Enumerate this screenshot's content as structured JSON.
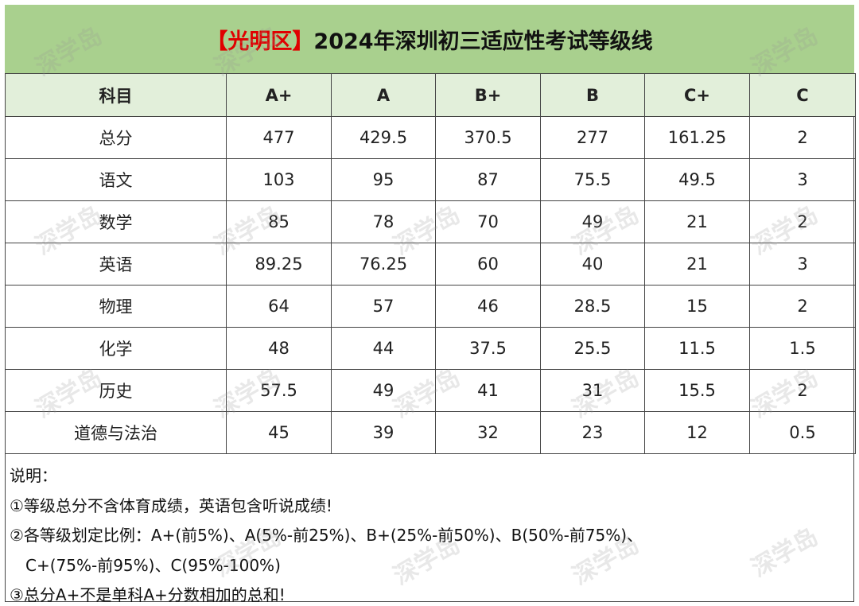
{
  "title": {
    "district": "【光明区】",
    "main": "2024年深圳初三适应性考试等级线"
  },
  "table": {
    "header": [
      "科目",
      "A+",
      "A",
      "B+",
      "B",
      "C+",
      "C"
    ],
    "rows": [
      [
        "总分",
        477,
        429.5,
        370.5,
        277,
        161.25,
        2
      ],
      [
        "语文",
        103,
        95,
        87,
        75.5,
        49.5,
        3
      ],
      [
        "数学",
        85,
        78,
        70,
        49,
        21,
        2
      ],
      [
        "英语",
        89.25,
        76.25,
        60,
        40,
        21,
        3
      ],
      [
        "物理",
        64,
        57,
        46,
        28.5,
        15,
        2
      ],
      [
        "化学",
        48,
        44,
        37.5,
        25.5,
        11.5,
        1.5
      ],
      [
        "历史",
        57.5,
        49,
        41,
        31,
        15.5,
        2
      ],
      [
        "道德与法治",
        45,
        39,
        32,
        23,
        12,
        0.5
      ]
    ]
  },
  "notes": {
    "heading": "说明：",
    "lines": [
      "①等级总分不含体育成绩，英语包含听说成绩!",
      "②各等级划定比例：A+(前5%)、A(5%-前25%)、B+(25%-前50%)、B(50%-前75%)、",
      "C+(75%-前95%)、C(95%-100%)",
      "③总分A+不是单科A+分数相加的总和!"
    ]
  },
  "watermark": "深学岛"
}
